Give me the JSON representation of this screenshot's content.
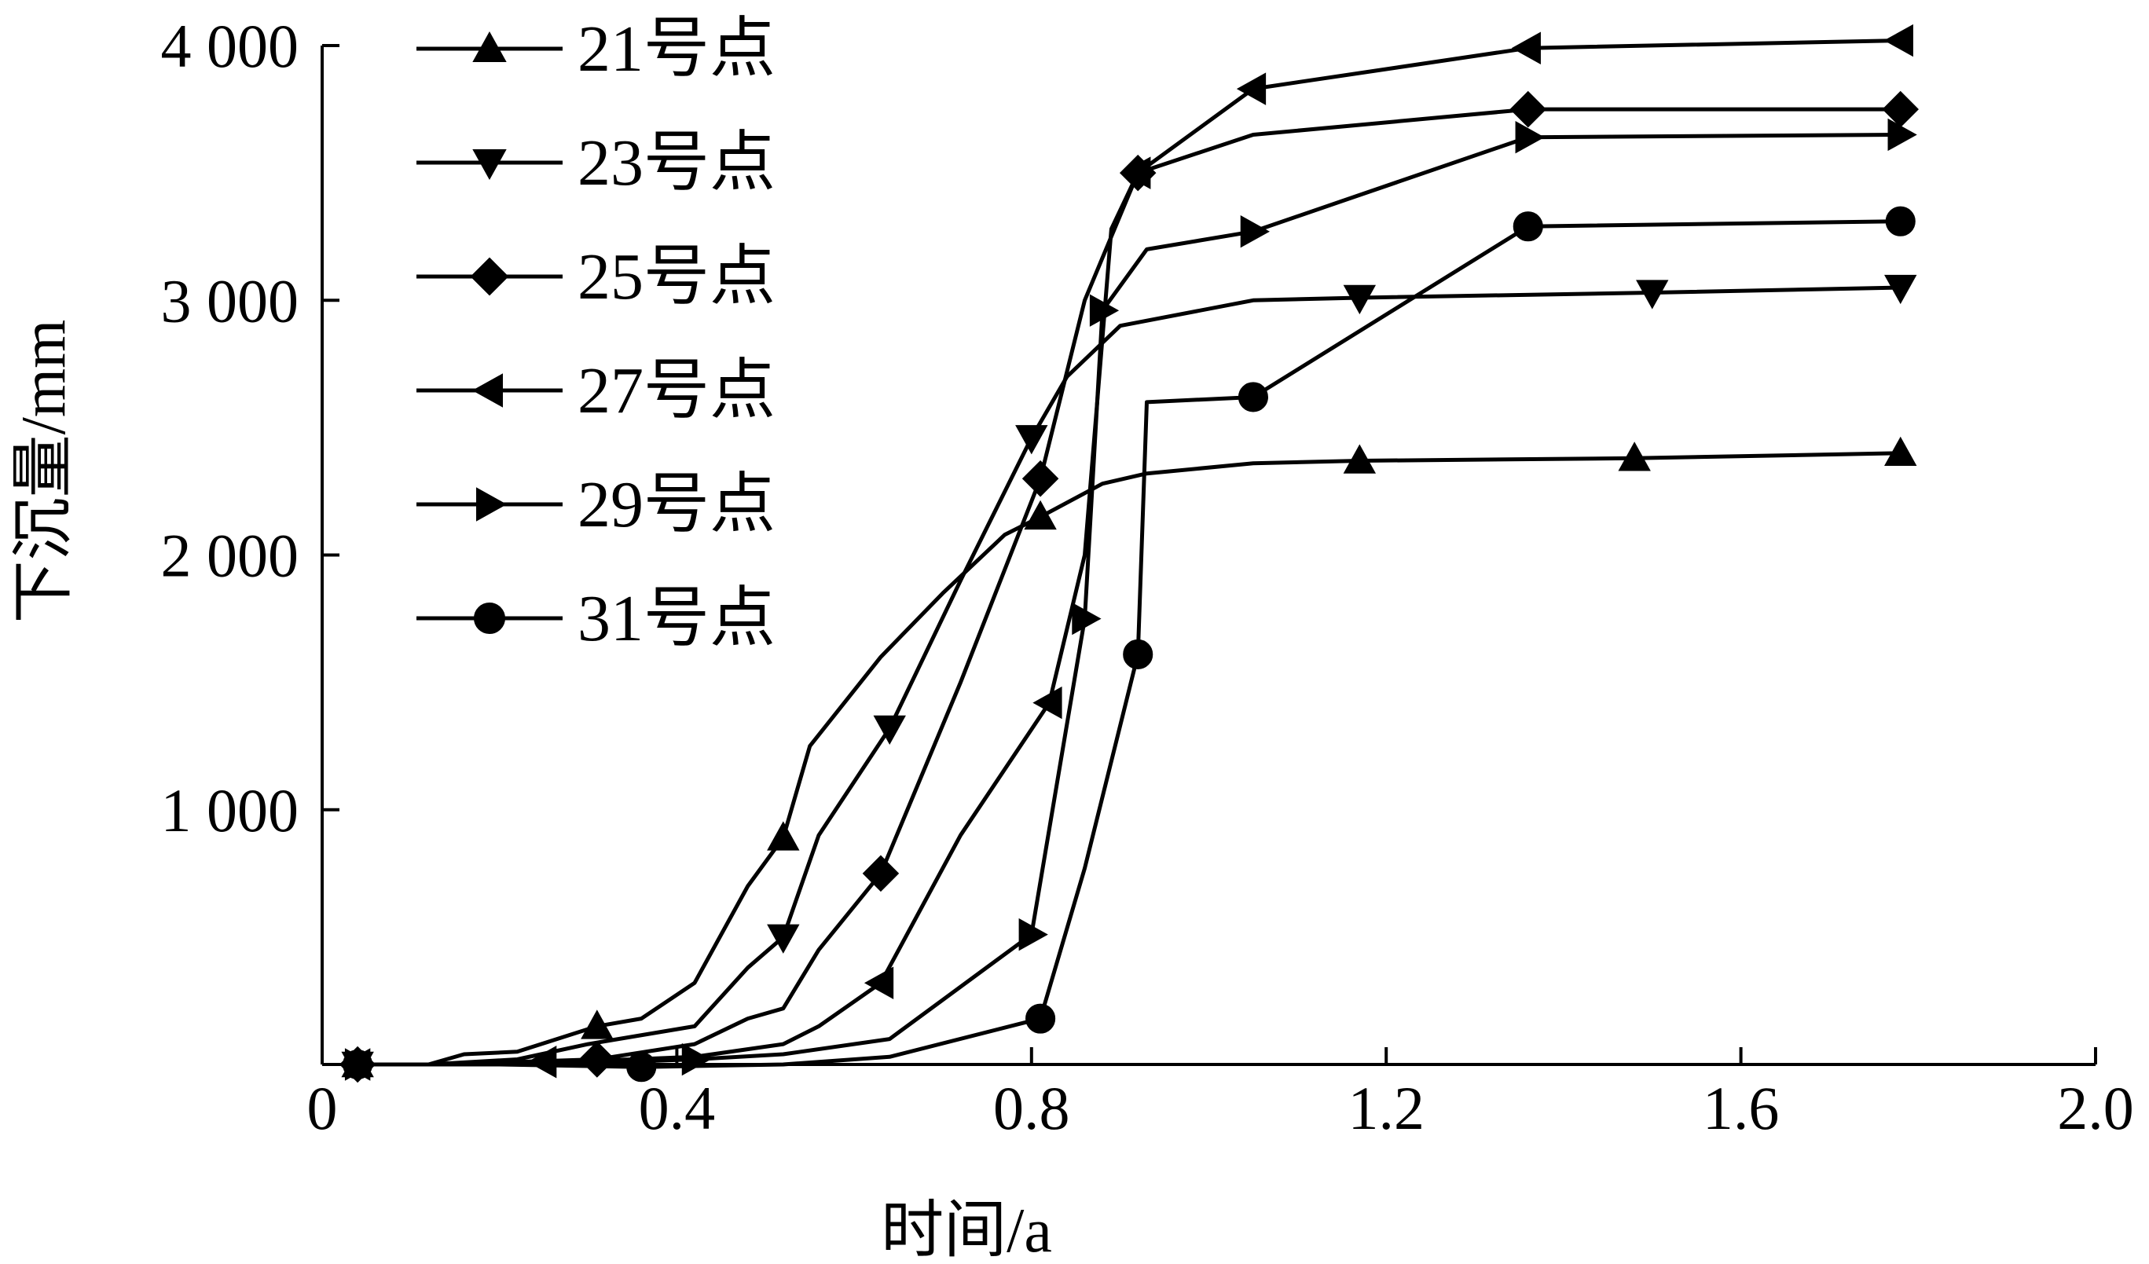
{
  "chart_data": {
    "type": "line",
    "xlabel": "时间/a",
    "ylabel": "下沉量/mm",
    "xlim": [
      0,
      2.0
    ],
    "ylim": [
      0,
      4000
    ],
    "x_ticks": [
      {
        "value": 0,
        "label": "0"
      },
      {
        "value": 0.4,
        "label": "0.4"
      },
      {
        "value": 0.8,
        "label": "0.8"
      },
      {
        "value": 1.2,
        "label": "1.2"
      },
      {
        "value": 1.6,
        "label": "1.6"
      },
      {
        "value": 2.0,
        "label": "2.0"
      }
    ],
    "y_ticks": [
      {
        "value": 1000,
        "label": "1 000"
      },
      {
        "value": 2000,
        "label": "2 000"
      },
      {
        "value": 3000,
        "label": "3 000"
      },
      {
        "value": 4000,
        "label": "4 000"
      }
    ],
    "grid": false,
    "legend_position": "top-left",
    "series": [
      {
        "name": "21号点",
        "marker": "triangle-up",
        "points": [
          [
            0.04,
            0
          ],
          [
            0.12,
            0
          ],
          [
            0.16,
            40
          ],
          [
            0.22,
            50
          ],
          [
            0.31,
            150
          ],
          [
            0.36,
            180
          ],
          [
            0.42,
            320
          ],
          [
            0.48,
            700
          ],
          [
            0.52,
            890
          ],
          [
            0.55,
            1250
          ],
          [
            0.63,
            1600
          ],
          [
            0.7,
            1850
          ],
          [
            0.77,
            2080
          ],
          [
            0.81,
            2150
          ],
          [
            0.88,
            2280
          ],
          [
            0.93,
            2320
          ],
          [
            1.05,
            2360
          ],
          [
            1.17,
            2370
          ],
          [
            1.48,
            2380
          ],
          [
            1.78,
            2400
          ]
        ],
        "marker_points": [
          [
            0.04,
            0
          ],
          [
            0.31,
            150
          ],
          [
            0.52,
            890
          ],
          [
            0.81,
            2150
          ],
          [
            1.17,
            2370
          ],
          [
            1.48,
            2380
          ],
          [
            1.78,
            2400
          ]
        ]
      },
      {
        "name": "23号点",
        "marker": "triangle-down",
        "points": [
          [
            0.04,
            0
          ],
          [
            0.12,
            0
          ],
          [
            0.22,
            20
          ],
          [
            0.3,
            80
          ],
          [
            0.42,
            150
          ],
          [
            0.48,
            380
          ],
          [
            0.52,
            500
          ],
          [
            0.56,
            900
          ],
          [
            0.64,
            1320
          ],
          [
            0.72,
            1900
          ],
          [
            0.8,
            2460
          ],
          [
            0.84,
            2700
          ],
          [
            0.9,
            2900
          ],
          [
            1.05,
            3000
          ],
          [
            1.17,
            3010
          ],
          [
            1.5,
            3030
          ],
          [
            1.78,
            3050
          ]
        ],
        "marker_points": [
          [
            0.04,
            0
          ],
          [
            0.52,
            500
          ],
          [
            0.64,
            1320
          ],
          [
            0.8,
            2460
          ],
          [
            1.17,
            3010
          ],
          [
            1.5,
            3030
          ],
          [
            1.78,
            3050
          ]
        ]
      },
      {
        "name": "25号点",
        "marker": "diamond",
        "points": [
          [
            0.04,
            0
          ],
          [
            0.12,
            0
          ],
          [
            0.22,
            10
          ],
          [
            0.31,
            20
          ],
          [
            0.42,
            80
          ],
          [
            0.48,
            180
          ],
          [
            0.52,
            220
          ],
          [
            0.56,
            450
          ],
          [
            0.63,
            750
          ],
          [
            0.72,
            1500
          ],
          [
            0.81,
            2300
          ],
          [
            0.86,
            3000
          ],
          [
            0.92,
            3500
          ],
          [
            1.05,
            3650
          ],
          [
            1.36,
            3750
          ],
          [
            1.78,
            3750
          ]
        ],
        "marker_points": [
          [
            0.04,
            0
          ],
          [
            0.31,
            20
          ],
          [
            0.63,
            750
          ],
          [
            0.81,
            2300
          ],
          [
            0.92,
            3500
          ],
          [
            1.36,
            3750
          ],
          [
            1.78,
            3750
          ]
        ]
      },
      {
        "name": "27号点",
        "marker": "triangle-left",
        "points": [
          [
            0.04,
            0
          ],
          [
            0.12,
            0
          ],
          [
            0.25,
            10
          ],
          [
            0.35,
            20
          ],
          [
            0.42,
            30
          ],
          [
            0.52,
            80
          ],
          [
            0.56,
            150
          ],
          [
            0.63,
            320
          ],
          [
            0.72,
            900
          ],
          [
            0.82,
            1420
          ],
          [
            0.86,
            2000
          ],
          [
            0.89,
            3280
          ],
          [
            0.92,
            3500
          ],
          [
            1.05,
            3830
          ],
          [
            1.36,
            3990
          ],
          [
            1.78,
            4020
          ]
        ],
        "marker_points": [
          [
            0.04,
            0
          ],
          [
            0.25,
            10
          ],
          [
            0.63,
            320
          ],
          [
            0.82,
            1420
          ],
          [
            0.92,
            3500
          ],
          [
            1.05,
            3830
          ],
          [
            1.36,
            3990
          ],
          [
            1.78,
            4020
          ]
        ]
      },
      {
        "name": "29号点",
        "marker": "triangle-right",
        "points": [
          [
            0.04,
            0
          ],
          [
            0.15,
            0
          ],
          [
            0.3,
            5
          ],
          [
            0.42,
            20
          ],
          [
            0.52,
            40
          ],
          [
            0.64,
            100
          ],
          [
            0.8,
            510
          ],
          [
            0.86,
            1750
          ],
          [
            0.88,
            2960
          ],
          [
            0.93,
            3200
          ],
          [
            1.05,
            3270
          ],
          [
            1.36,
            3640
          ],
          [
            1.78,
            3650
          ]
        ],
        "marker_points": [
          [
            0.04,
            0
          ],
          [
            0.42,
            20
          ],
          [
            0.8,
            510
          ],
          [
            0.86,
            1750
          ],
          [
            0.88,
            2960
          ],
          [
            1.05,
            3270
          ],
          [
            1.36,
            3640
          ],
          [
            1.78,
            3650
          ]
        ]
      },
      {
        "name": "31号点",
        "marker": "circle",
        "points": [
          [
            0.04,
            0
          ],
          [
            0.2,
            0
          ],
          [
            0.36,
            -10
          ],
          [
            0.52,
            0
          ],
          [
            0.64,
            30
          ],
          [
            0.81,
            180
          ],
          [
            0.86,
            770
          ],
          [
            0.92,
            1610
          ],
          [
            0.93,
            2600
          ],
          [
            1.05,
            2620
          ],
          [
            1.36,
            3290
          ],
          [
            1.78,
            3310
          ]
        ],
        "marker_points": [
          [
            0.04,
            0
          ],
          [
            0.36,
            -10
          ],
          [
            0.81,
            180
          ],
          [
            0.92,
            1610
          ],
          [
            1.05,
            2620
          ],
          [
            1.36,
            3290
          ],
          [
            1.78,
            3310
          ]
        ]
      }
    ]
  }
}
